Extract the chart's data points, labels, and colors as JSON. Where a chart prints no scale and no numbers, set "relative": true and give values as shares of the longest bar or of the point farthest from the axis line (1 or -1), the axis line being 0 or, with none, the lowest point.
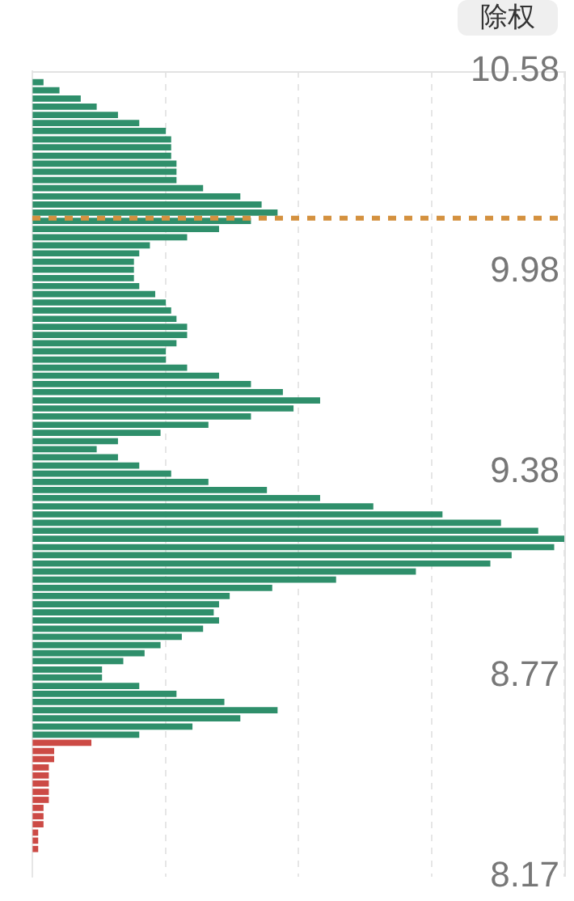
{
  "chart_data": {
    "type": "bar",
    "orientation": "horizontal",
    "relative": true,
    "x": [
      10.547,
      10.523,
      10.498,
      10.474,
      10.449,
      10.425,
      10.401,
      10.376,
      10.352,
      10.327,
      10.303,
      10.279,
      10.254,
      10.23,
      10.205,
      10.181,
      10.157,
      10.132,
      10.108,
      10.083,
      10.059,
      10.035,
      10.01,
      9.986,
      9.961,
      9.937,
      9.913,
      9.888,
      9.864,
      9.839,
      9.815,
      9.791,
      9.766,
      9.742,
      9.717,
      9.693,
      9.669,
      9.644,
      9.62,
      9.595,
      9.571,
      9.547,
      9.522,
      9.498,
      9.473,
      9.449,
      9.425,
      9.4,
      9.376,
      9.351,
      9.327,
      9.303,
      9.278,
      9.254,
      9.229,
      9.205,
      9.181,
      9.156,
      9.132,
      9.107,
      9.083,
      9.059,
      9.034,
      9.01,
      8.985,
      8.961,
      8.937,
      8.912,
      8.888,
      8.863,
      8.839,
      8.815,
      8.79,
      8.766,
      8.741,
      8.717,
      8.693,
      8.668,
      8.644,
      8.619,
      8.595,
      8.571,
      8.546,
      8.522,
      8.497,
      8.473,
      8.449,
      8.424,
      8.4,
      8.376,
      8.351,
      8.327,
      8.302,
      8.278,
      8.253
    ],
    "values": [
      0.02,
      0.05,
      0.09,
      0.12,
      0.16,
      0.2,
      0.25,
      0.26,
      0.26,
      0.26,
      0.27,
      0.27,
      0.27,
      0.32,
      0.39,
      0.43,
      0.46,
      0.41,
      0.35,
      0.29,
      0.22,
      0.2,
      0.19,
      0.19,
      0.19,
      0.2,
      0.23,
      0.25,
      0.26,
      0.27,
      0.29,
      0.29,
      0.27,
      0.25,
      0.25,
      0.29,
      0.35,
      0.41,
      0.47,
      0.54,
      0.49,
      0.41,
      0.33,
      0.24,
      0.16,
      0.12,
      0.16,
      0.2,
      0.26,
      0.33,
      0.44,
      0.54,
      0.64,
      0.77,
      0.88,
      0.95,
      1,
      0.98,
      0.9,
      0.86,
      0.72,
      0.57,
      0.45,
      0.37,
      0.35,
      0.34,
      0.35,
      0.32,
      0.28,
      0.24,
      0.21,
      0.17,
      0.13,
      0.13,
      0.2,
      0.27,
      0.36,
      0.46,
      0.39,
      0.3,
      0.2,
      0.11,
      0.04,
      0.04,
      0.03,
      0.03,
      0.03,
      0.03,
      0.03,
      0.02,
      0.02,
      0.02,
      0.01,
      0.01,
      0.01
    ],
    "colors": [
      "#2f8f6b",
      "#2f8f6b",
      "#2f8f6b",
      "#2f8f6b",
      "#2f8f6b",
      "#2f8f6b",
      "#2f8f6b",
      "#2f8f6b",
      "#2f8f6b",
      "#2f8f6b",
      "#2f8f6b",
      "#2f8f6b",
      "#2f8f6b",
      "#2f8f6b",
      "#2f8f6b",
      "#2f8f6b",
      "#2f8f6b",
      "#2f8f6b",
      "#2f8f6b",
      "#2f8f6b",
      "#2f8f6b",
      "#2f8f6b",
      "#2f8f6b",
      "#2f8f6b",
      "#2f8f6b",
      "#2f8f6b",
      "#2f8f6b",
      "#2f8f6b",
      "#2f8f6b",
      "#2f8f6b",
      "#2f8f6b",
      "#2f8f6b",
      "#2f8f6b",
      "#2f8f6b",
      "#2f8f6b",
      "#2f8f6b",
      "#2f8f6b",
      "#2f8f6b",
      "#2f8f6b",
      "#2f8f6b",
      "#2f8f6b",
      "#2f8f6b",
      "#2f8f6b",
      "#2f8f6b",
      "#2f8f6b",
      "#2f8f6b",
      "#2f8f6b",
      "#2f8f6b",
      "#2f8f6b",
      "#2f8f6b",
      "#2f8f6b",
      "#2f8f6b",
      "#2f8f6b",
      "#2f8f6b",
      "#2f8f6b",
      "#2f8f6b",
      "#2f8f6b",
      "#2f8f6b",
      "#2f8f6b",
      "#2f8f6b",
      "#2f8f6b",
      "#2f8f6b",
      "#2f8f6b",
      "#2f8f6b",
      "#2f8f6b",
      "#2f8f6b",
      "#2f8f6b",
      "#2f8f6b",
      "#2f8f6b",
      "#2f8f6b",
      "#2f8f6b",
      "#2f8f6b",
      "#2f8f6b",
      "#2f8f6b",
      "#2f8f6b",
      "#2f8f6b",
      "#2f8f6b",
      "#2f8f6b",
      "#2f8f6b",
      "#2f8f6b",
      "#2f8f6b",
      "#cc4a45",
      "#cc4a45",
      "#cc4a45",
      "#cc4a45",
      "#cc4a45",
      "#cc4a45",
      "#cc4a45",
      "#cc4a45",
      "#cc4a45",
      "#cc4a45",
      "#cc4a45",
      "#cc4a45",
      "#cc4a45",
      "#cc4a45"
    ],
    "ylim": [
      8.17,
      10.58
    ],
    "yticks": [
      8.17,
      8.77,
      9.38,
      9.98,
      10.58
    ],
    "ref_lines": [
      {
        "axis": "y",
        "value": 10.14,
        "color": "#d4913f",
        "line_style": "dashed"
      }
    ],
    "annotations": [
      "除权"
    ],
    "grid": "x",
    "legend": false,
    "tick_labels": "y"
  }
}
